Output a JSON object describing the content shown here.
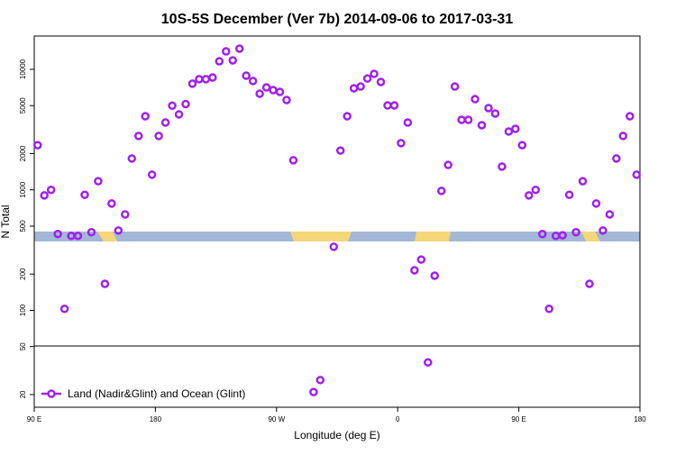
{
  "chart_data": {
    "type": "scatter",
    "title": "10S-5S December (Ver 7b)   2014-09-06 to 2017-03-31",
    "x_label": "Longitude (deg E)",
    "y_label": "N Total",
    "log_y": true,
    "legend": "bottom-left",
    "xlim": [
      90,
      540
    ],
    "ylim": [
      15.7,
      18900
    ],
    "xticks": [
      {
        "value": 90,
        "label": "90 E"
      },
      180,
      {
        "value": 270,
        "label": "90 W"
      },
      {
        "value": 360,
        "label": "0"
      },
      {
        "value": 450,
        "label": "90 E"
      },
      {
        "value": 540,
        "label": "180"
      }
    ],
    "yticks": [
      20,
      50,
      100,
      200,
      500,
      1000,
      2000,
      5000,
      10000
    ],
    "series": [
      {
        "name": "Land (Nadir&Glint) and Ocean (Glint)",
        "color": "#a020f0",
        "x": [
          92.5,
          97.5,
          102.5,
          107.5,
          112.5,
          117.5,
          122.5,
          127.5,
          132.5,
          137.5,
          142.5,
          147.5,
          152.5,
          157.5,
          162.5,
          167.5,
          172.5,
          177.5,
          182.5,
          187.5,
          192.5,
          197.5,
          202.5,
          207.5,
          212.5,
          217.5,
          222.5,
          227.5,
          232.5,
          237.5,
          242.5,
          247.5,
          252.5,
          257.5,
          262.5,
          267.5,
          272.5,
          277.5,
          282.5,
          297.5,
          302.5,
          312.5,
          317.5,
          322.5,
          327.5,
          332.5,
          337.5,
          342.5,
          347.5,
          352.5,
          357.5,
          362.5,
          367.5,
          372.5,
          377.5,
          382.5,
          387.5,
          392.5,
          397.5,
          402.5,
          407.5,
          412.5,
          417.5,
          422.5,
          427.5,
          432.5,
          437.5,
          442.5,
          447.5,
          452.5,
          457.5,
          462.5,
          467.5,
          472.5,
          477.5,
          482.5,
          487.5,
          492.5,
          497.5,
          502.5,
          507.5,
          512.5,
          517.5,
          522.5,
          527.5,
          532.5,
          537.5
        ],
        "values": [
          2350,
          900,
          1000,
          430,
          103,
          415,
          415,
          910,
          445,
          1180,
          166,
          770,
          460,
          625,
          1820,
          2800,
          4080,
          1335,
          2800,
          3620,
          5000,
          4230,
          5150,
          7600,
          8290,
          8290,
          8560,
          11680,
          14100,
          11880,
          14860,
          8860,
          8000,
          6280,
          7080,
          6730,
          6500,
          5570,
          1760,
          21,
          26.4,
          337,
          2120,
          4080,
          6960,
          7200,
          8400,
          9180,
          7860,
          5020,
          5020,
          2440,
          3620,
          215,
          264,
          37,
          194,
          980,
          1610,
          7200,
          3810,
          3810,
          5660,
          3440,
          4770,
          4300,
          1560,
          3050,
          3210,
          2350,
          900,
          1000,
          430,
          103,
          415,
          420,
          910,
          445,
          1180,
          166,
          770,
          460,
          625,
          1820,
          2800,
          4080,
          1335
        ]
      }
    ]
  }
}
